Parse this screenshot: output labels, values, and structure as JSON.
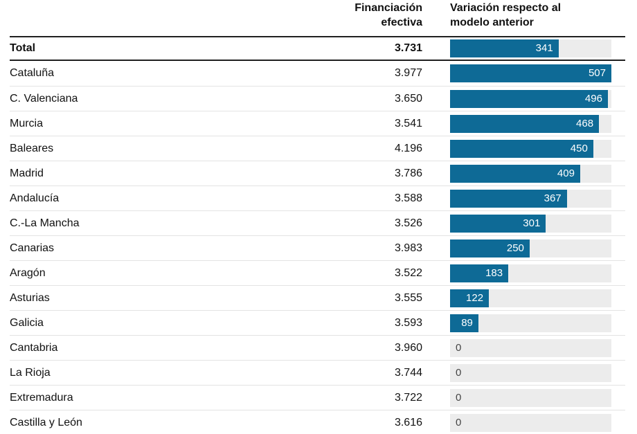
{
  "header": {
    "col_financing": "Financiación efectiva",
    "col_variation": "Variación respecto al modelo anterior"
  },
  "chart_data": {
    "type": "bar",
    "title": "",
    "xlabel": "",
    "ylabel": "",
    "bar_max": 507,
    "bar_color": "#0e6a96",
    "track_color": "#ececec",
    "columns": [
      "Financiación efectiva",
      "Variación respecto al modelo anterior"
    ],
    "categories": [
      "Total",
      "Cataluña",
      "C. Valenciana",
      "Murcia",
      "Baleares",
      "Madrid",
      "Andalucía",
      "C.-La Mancha",
      "Canarias",
      "Aragón",
      "Asturias",
      "Galicia",
      "Cantabria",
      "La Rioja",
      "Extremadura",
      "Castilla y León"
    ],
    "series": [
      {
        "name": "Financiación efectiva",
        "values": [
          3731,
          3977,
          3650,
          3541,
          4196,
          3786,
          3588,
          3526,
          3983,
          3522,
          3555,
          3593,
          3960,
          3744,
          3722,
          3616
        ]
      },
      {
        "name": "Variación respecto al modelo anterior",
        "values": [
          341,
          507,
          496,
          468,
          450,
          409,
          367,
          301,
          250,
          183,
          122,
          89,
          0,
          0,
          0,
          0
        ]
      }
    ],
    "rows": [
      {
        "label": "Total",
        "financing": "3.731",
        "variation": 341,
        "bold": true
      },
      {
        "label": "Cataluña",
        "financing": "3.977",
        "variation": 507,
        "bold": false
      },
      {
        "label": "C. Valenciana",
        "financing": "3.650",
        "variation": 496,
        "bold": false
      },
      {
        "label": "Murcia",
        "financing": "3.541",
        "variation": 468,
        "bold": false
      },
      {
        "label": "Baleares",
        "financing": "4.196",
        "variation": 450,
        "bold": false
      },
      {
        "label": "Madrid",
        "financing": "3.786",
        "variation": 409,
        "bold": false
      },
      {
        "label": "Andalucía",
        "financing": "3.588",
        "variation": 367,
        "bold": false
      },
      {
        "label": "C.-La Mancha",
        "financing": "3.526",
        "variation": 301,
        "bold": false
      },
      {
        "label": "Canarias",
        "financing": "3.983",
        "variation": 250,
        "bold": false
      },
      {
        "label": "Aragón",
        "financing": "3.522",
        "variation": 183,
        "bold": false
      },
      {
        "label": "Asturias",
        "financing": "3.555",
        "variation": 122,
        "bold": false
      },
      {
        "label": "Galicia",
        "financing": "3.593",
        "variation": 89,
        "bold": false
      },
      {
        "label": "Cantabria",
        "financing": "3.960",
        "variation": 0,
        "bold": false
      },
      {
        "label": "La Rioja",
        "financing": "3.744",
        "variation": 0,
        "bold": false
      },
      {
        "label": "Extremadura",
        "financing": "3.722",
        "variation": 0,
        "bold": false
      },
      {
        "label": "Castilla y León",
        "financing": "3.616",
        "variation": 0,
        "bold": false
      }
    ]
  }
}
